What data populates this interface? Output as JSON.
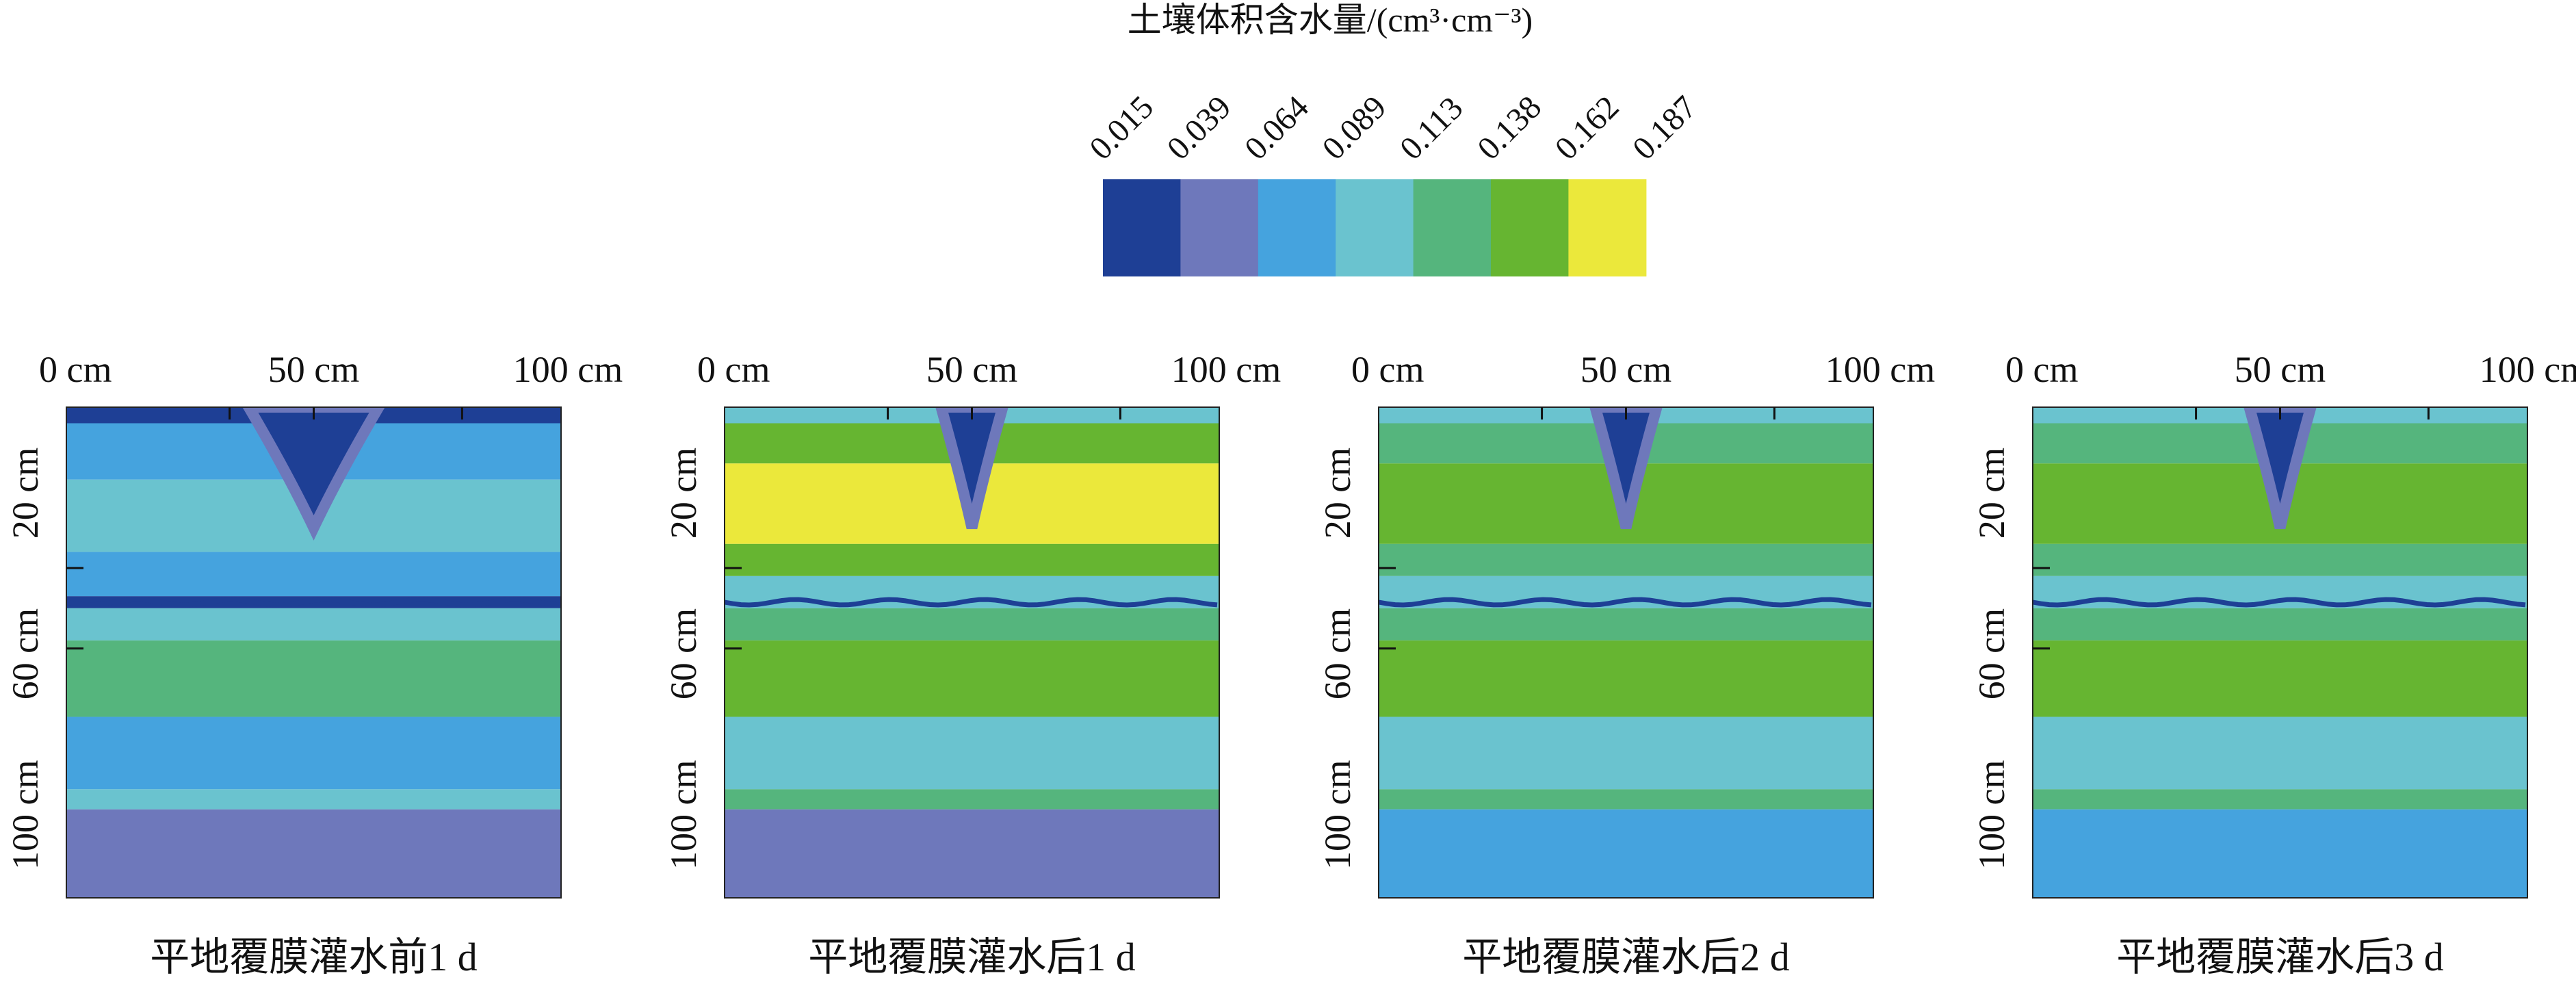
{
  "legend": {
    "title": "土壤体积含水量/(cm³·cm⁻³)",
    "ticks": [
      "0.015",
      "0.039",
      "0.064",
      "0.089",
      "0.113",
      "0.138",
      "0.162",
      "0.187"
    ],
    "colors": [
      "#1e3f95",
      "#6e78bb",
      "#45a3de",
      "#6ac3cf",
      "#55b57d",
      "#66b531",
      "#ebe83b"
    ]
  },
  "axis": {
    "x_ticks": [
      "0 cm",
      "50 cm",
      "100 cm"
    ],
    "y_ticks": [
      "20 cm",
      "60 cm",
      "100 cm"
    ]
  },
  "panels": [
    {
      "title": "平地覆膜灌水前1 d"
    },
    {
      "title": "平地覆膜灌水后1 d"
    },
    {
      "title": "平地覆膜灌水后2 d"
    },
    {
      "title": "平地覆膜灌水后3 d"
    }
  ],
  "chart_data": [
    {
      "type": "heatmap",
      "title": "平地覆膜灌水前1 d",
      "x_ticks": [
        0,
        50,
        100
      ],
      "x_unit": "cm",
      "y_ticks": [
        20,
        60,
        100
      ],
      "y_unit": "cm",
      "levels": [
        0.015,
        0.039,
        0.064,
        0.089,
        0.113,
        0.138,
        0.162,
        0.187
      ],
      "depth_bands": [
        {
          "depth": [
            0,
            4
          ],
          "value": 0.027
        },
        {
          "depth": [
            4,
            18
          ],
          "value": 0.076
        },
        {
          "depth": [
            18,
            36
          ],
          "value": 0.101
        },
        {
          "depth": [
            36,
            47
          ],
          "value": 0.076
        },
        {
          "depth": [
            47,
            50
          ],
          "value": 0.027
        },
        {
          "depth": [
            50,
            58
          ],
          "value": 0.101
        },
        {
          "depth": [
            58,
            77
          ],
          "value": 0.125
        },
        {
          "depth": [
            77,
            95
          ],
          "value": 0.076
        },
        {
          "depth": [
            95,
            100
          ],
          "value": 0.101
        },
        {
          "depth": [
            100,
            122
          ],
          "value": 0.051
        }
      ],
      "features": [
        {
          "kind": "dry-plume-under-emitter",
          "x": 50,
          "depth": [
            0,
            30
          ],
          "value": 0.027
        }
      ]
    },
    {
      "type": "heatmap",
      "title": "平地覆膜灌水后1 d",
      "x_ticks": [
        0,
        50,
        100
      ],
      "x_unit": "cm",
      "y_ticks": [
        20,
        60,
        100
      ],
      "y_unit": "cm",
      "levels": [
        0.015,
        0.039,
        0.064,
        0.089,
        0.113,
        0.138,
        0.162,
        0.187
      ],
      "depth_bands": [
        {
          "depth": [
            0,
            4
          ],
          "value": 0.101
        },
        {
          "depth": [
            4,
            14
          ],
          "value": 0.15
        },
        {
          "depth": [
            14,
            34
          ],
          "value": 0.175
        },
        {
          "depth": [
            34,
            42
          ],
          "value": 0.15
        },
        {
          "depth": [
            42,
            50
          ],
          "value": 0.101
        },
        {
          "depth": [
            50,
            58
          ],
          "value": 0.125
        },
        {
          "depth": [
            58,
            77
          ],
          "value": 0.15
        },
        {
          "depth": [
            77,
            95
          ],
          "value": 0.101
        },
        {
          "depth": [
            95,
            100
          ],
          "value": 0.125
        },
        {
          "depth": [
            100,
            122
          ],
          "value": 0.051
        }
      ],
      "features": [
        {
          "kind": "dry-plume-under-emitter",
          "x": 50,
          "depth": [
            0,
            30
          ],
          "value": 0.027
        }
      ]
    },
    {
      "type": "heatmap",
      "title": "平地覆膜灌水后2 d",
      "x_ticks": [
        0,
        50,
        100
      ],
      "x_unit": "cm",
      "y_ticks": [
        20,
        60,
        100
      ],
      "y_unit": "cm",
      "levels": [
        0.015,
        0.039,
        0.064,
        0.089,
        0.113,
        0.138,
        0.162,
        0.187
      ],
      "depth_bands": [
        {
          "depth": [
            0,
            4
          ],
          "value": 0.101
        },
        {
          "depth": [
            4,
            14
          ],
          "value": 0.125
        },
        {
          "depth": [
            14,
            34
          ],
          "value": 0.15
        },
        {
          "depth": [
            34,
            42
          ],
          "value": 0.125
        },
        {
          "depth": [
            42,
            50
          ],
          "value": 0.101
        },
        {
          "depth": [
            50,
            58
          ],
          "value": 0.125
        },
        {
          "depth": [
            58,
            77
          ],
          "value": 0.15
        },
        {
          "depth": [
            77,
            95
          ],
          "value": 0.101
        },
        {
          "depth": [
            95,
            100
          ],
          "value": 0.125
        },
        {
          "depth": [
            100,
            122
          ],
          "value": 0.076
        }
      ],
      "features": [
        {
          "kind": "dry-plume-under-emitter",
          "x": 50,
          "depth": [
            0,
            30
          ],
          "value": 0.027
        }
      ]
    },
    {
      "type": "heatmap",
      "title": "平地覆膜灌水后3 d",
      "x_ticks": [
        0,
        50,
        100
      ],
      "x_unit": "cm",
      "y_ticks": [
        20,
        60,
        100
      ],
      "y_unit": "cm",
      "levels": [
        0.015,
        0.039,
        0.064,
        0.089,
        0.113,
        0.138,
        0.162,
        0.187
      ],
      "depth_bands": [
        {
          "depth": [
            0,
            4
          ],
          "value": 0.101
        },
        {
          "depth": [
            4,
            14
          ],
          "value": 0.125
        },
        {
          "depth": [
            14,
            34
          ],
          "value": 0.15
        },
        {
          "depth": [
            34,
            42
          ],
          "value": 0.125
        },
        {
          "depth": [
            42,
            50
          ],
          "value": 0.101
        },
        {
          "depth": [
            50,
            58
          ],
          "value": 0.125
        },
        {
          "depth": [
            58,
            77
          ],
          "value": 0.15
        },
        {
          "depth": [
            77,
            95
          ],
          "value": 0.101
        },
        {
          "depth": [
            95,
            100
          ],
          "value": 0.125
        },
        {
          "depth": [
            100,
            122
          ],
          "value": 0.076
        }
      ],
      "features": [
        {
          "kind": "dry-plume-under-emitter",
          "x": 50,
          "depth": [
            0,
            30
          ],
          "value": 0.027
        }
      ]
    }
  ]
}
